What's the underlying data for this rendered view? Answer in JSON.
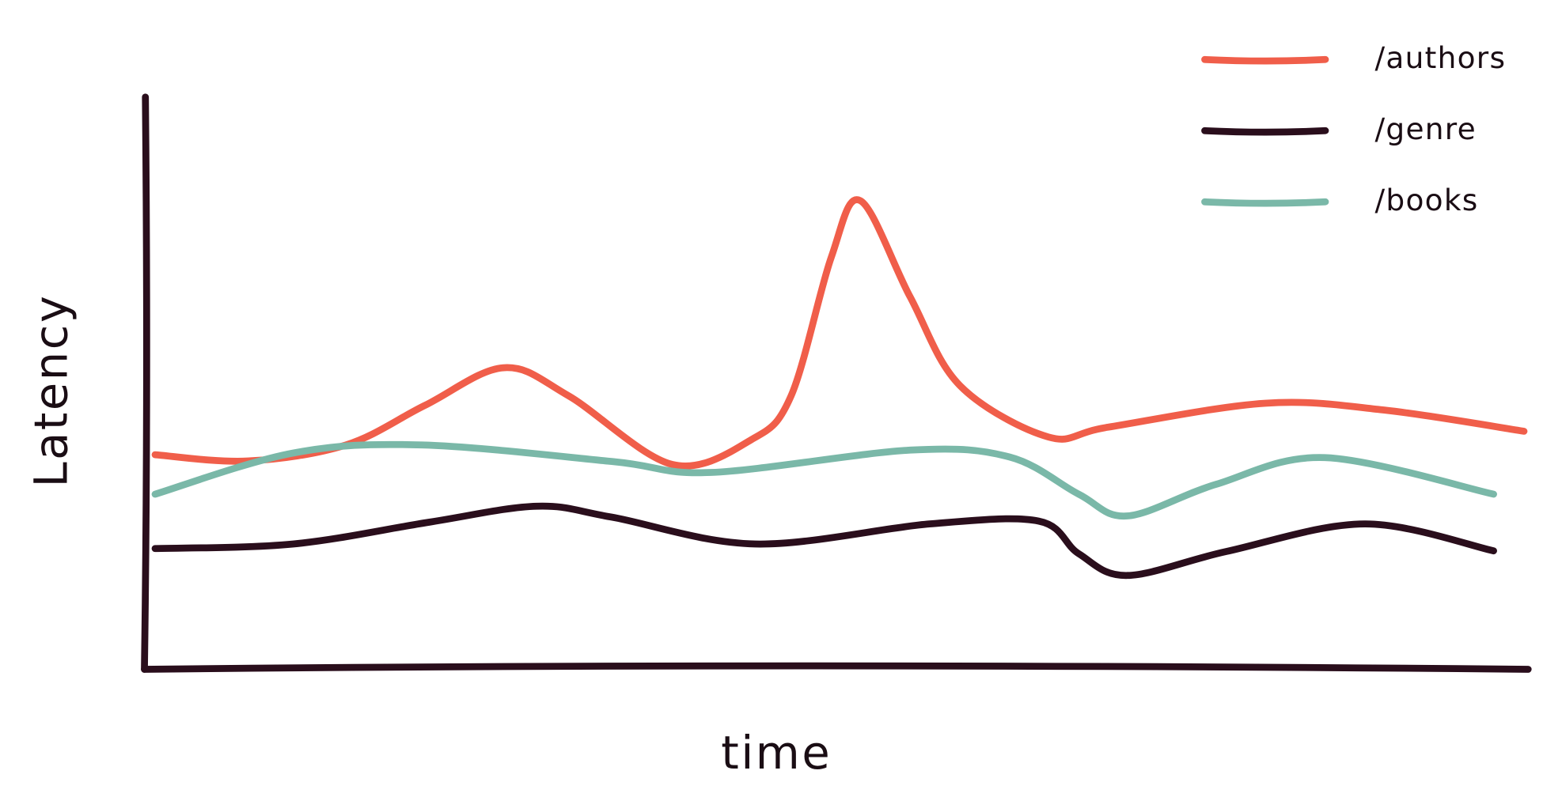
{
  "chart_data": {
    "type": "line",
    "x_label": "time",
    "y_label": "Latency",
    "xlim": [
      0,
      100
    ],
    "ylim": [
      0,
      100
    ],
    "grid": false,
    "legend": "top-right",
    "series": [
      {
        "name": "/authors",
        "color": "#f05e4a",
        "x": [
          0.7,
          7.4,
          14.5,
          20.2,
          25.9,
          30.6,
          38.1,
          43.8,
          46.7,
          49.6,
          51.7,
          55.3,
          58.9,
          65.3,
          69.6,
          81.0,
          89.6,
          99.7
        ],
        "values": [
          37.5,
          36.4,
          39.2,
          46.1,
          52.7,
          47.8,
          35.8,
          40.1,
          47.8,
          72.0,
          81.9,
          65.1,
          49.6,
          40.6,
          42.3,
          46.5,
          45.3,
          41.6
        ]
      },
      {
        "name": "/genre",
        "color": "#2a0e1c",
        "x": [
          0.7,
          10.7,
          20.5,
          28.3,
          33.7,
          44.1,
          56.7,
          64.6,
          67.5,
          71.0,
          78.2,
          88.2,
          97.5
        ],
        "values": [
          21.1,
          21.9,
          25.7,
          28.5,
          26.6,
          21.9,
          25.4,
          25.9,
          20.2,
          16.4,
          20.6,
          25.4,
          20.7
        ]
      },
      {
        "name": "/books",
        "color": "#7ab8a8",
        "x": [
          0.7,
          10.7,
          20.0,
          33.8,
          40.9,
          55.3,
          62.5,
          67.5,
          71.0,
          77.4,
          85.3,
          97.5
        ],
        "values": [
          30.6,
          37.8,
          39.2,
          36.3,
          34.4,
          38.3,
          37.1,
          30.6,
          26.8,
          32.3,
          37.0,
          30.6
        ]
      }
    ]
  }
}
